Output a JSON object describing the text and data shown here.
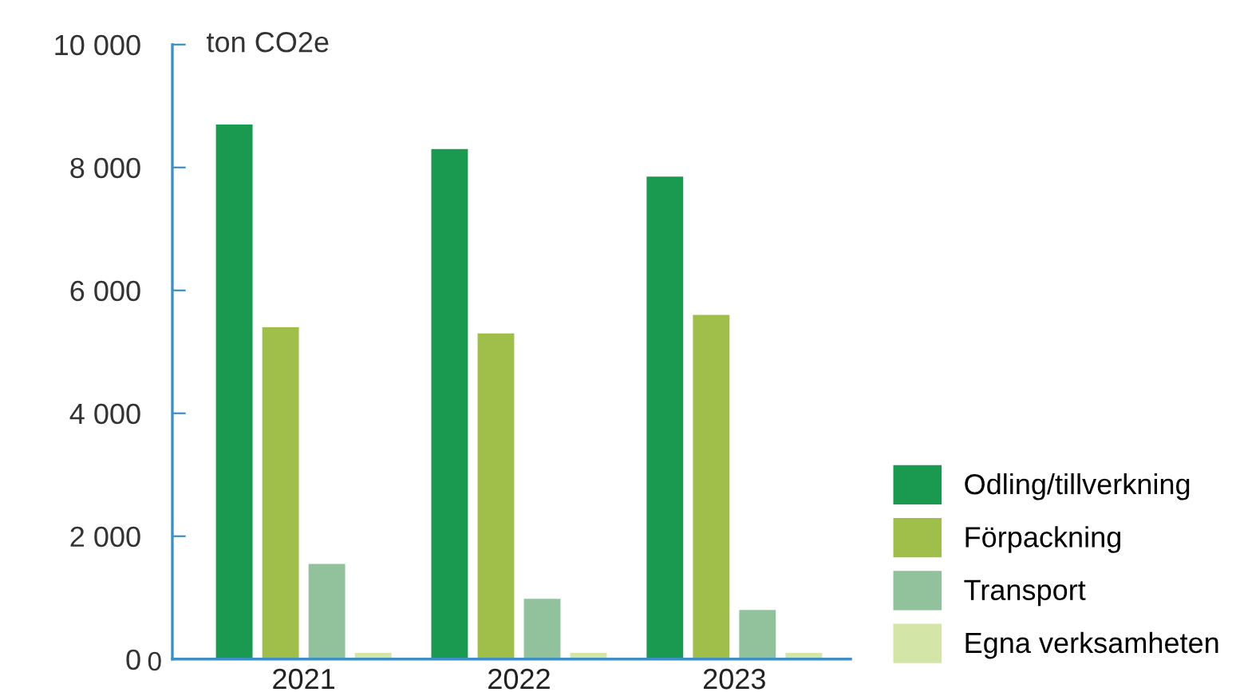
{
  "chart_data": {
    "type": "bar",
    "ylabel": "ton CO2e",
    "categories": [
      "2021",
      "2022",
      "2023"
    ],
    "series": [
      {
        "name": "Odling/tillverkning",
        "color": "#199a50",
        "values": [
          8700,
          8300,
          7850
        ]
      },
      {
        "name": "Förpackning",
        "color": "#9fbe4a",
        "values": [
          5400,
          5300,
          5600
        ]
      },
      {
        "name": "Transport",
        "color": "#92c29c",
        "values": [
          1550,
          980,
          800
        ]
      },
      {
        "name": "Egna verksamheten",
        "color": "#d4e5a8",
        "values": [
          100,
          100,
          100
        ]
      }
    ],
    "ylim": [
      0,
      10000
    ],
    "yticks": [
      0,
      {
        "value": 2000,
        "label": "2 000"
      },
      {
        "value": 4000,
        "label": "4 000"
      },
      {
        "value": 6000,
        "label": "6 000"
      },
      {
        "value": 8000,
        "label": "8 000"
      },
      {
        "value": 10000,
        "label": "10 000"
      }
    ],
    "annotations": [
      "0"
    ],
    "grid": false,
    "legend": "bottom right"
  }
}
